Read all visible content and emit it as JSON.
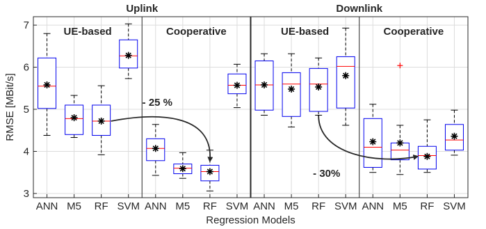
{
  "chart_data": {
    "type": "boxplot",
    "xlabel": "Regression Models",
    "ylabel": "RMSE [MBit/s]",
    "ylim": [
      2.9,
      7.2
    ],
    "yticks": [
      3,
      4,
      5,
      6,
      7
    ],
    "grid": true,
    "categories": [
      "ANN",
      "M5",
      "RF",
      "SVM",
      "ANN",
      "M5",
      "RF",
      "SVM",
      "ANN",
      "M5",
      "RF",
      "SVM",
      "ANN",
      "M5",
      "RF",
      "SVM"
    ],
    "panel_titles": [
      "Uplink",
      "Downlink"
    ],
    "group_labels": [
      "UE-based",
      "Cooperative",
      "UE-based",
      "Cooperative"
    ],
    "boxes": [
      {
        "whisker_low": 4.38,
        "q1": 5.02,
        "median": 5.55,
        "q3": 6.22,
        "whisker_high": 6.8,
        "mean": 5.58
      },
      {
        "whisker_low": 4.33,
        "q1": 4.4,
        "median": 4.78,
        "q3": 5.1,
        "whisker_high": 5.33,
        "mean": 4.8
      },
      {
        "whisker_low": 3.92,
        "q1": 4.38,
        "median": 4.72,
        "q3": 5.1,
        "whisker_high": 5.56,
        "mean": 4.72
      },
      {
        "whisker_low": 5.73,
        "q1": 5.98,
        "median": 6.27,
        "q3": 6.65,
        "whisker_high": 7.03,
        "mean": 6.28
      },
      {
        "whisker_low": 3.43,
        "q1": 3.78,
        "median": 4.07,
        "q3": 4.3,
        "whisker_high": 4.64,
        "mean": 4.07
      },
      {
        "whisker_low": 3.36,
        "q1": 3.47,
        "median": 3.6,
        "q3": 3.7,
        "whisker_high": 3.97,
        "mean": 3.59
      },
      {
        "whisker_low": 3.06,
        "q1": 3.3,
        "median": 3.52,
        "q3": 3.67,
        "whisker_high": 4.03,
        "mean": 3.52
      },
      {
        "whisker_low": 5.04,
        "q1": 5.37,
        "median": 5.57,
        "q3": 5.84,
        "whisker_high": 6.07,
        "mean": 5.57
      },
      {
        "whisker_low": 4.86,
        "q1": 4.98,
        "median": 5.58,
        "q3": 6.15,
        "whisker_high": 6.32,
        "mean": 5.58
      },
      {
        "whisker_low": 4.58,
        "q1": 4.83,
        "median": 5.6,
        "q3": 5.87,
        "whisker_high": 6.32,
        "mean": 5.48
      },
      {
        "whisker_low": 4.86,
        "q1": 4.95,
        "median": 5.6,
        "q3": 5.97,
        "whisker_high": 6.22,
        "mean": 5.53
      },
      {
        "whisker_low": 4.62,
        "q1": 5.03,
        "median": 6.02,
        "q3": 6.25,
        "whisker_high": 6.93,
        "mean": 5.8
      },
      {
        "whisker_low": 3.5,
        "q1": 3.62,
        "median": 4.1,
        "q3": 4.78,
        "whisker_high": 5.12,
        "mean": 4.23
      },
      {
        "whisker_low": 3.45,
        "q1": 3.8,
        "median": 4.03,
        "q3": 4.2,
        "whisker_high": 4.62,
        "mean": 4.2,
        "outliers": [
          6.04
        ]
      },
      {
        "whisker_low": 3.5,
        "q1": 3.58,
        "median": 3.9,
        "q3": 4.12,
        "whisker_high": 4.75,
        "mean": 3.88
      },
      {
        "whisker_low": 3.91,
        "q1": 4.03,
        "median": 4.27,
        "q3": 4.64,
        "whisker_high": 4.98,
        "mean": 4.36
      }
    ],
    "annotations": [
      {
        "text": "- 25 %",
        "from_box": 2,
        "to_box": 6
      },
      {
        "text": "- 30%",
        "from_box": 10,
        "to_box": 14
      }
    ]
  }
}
